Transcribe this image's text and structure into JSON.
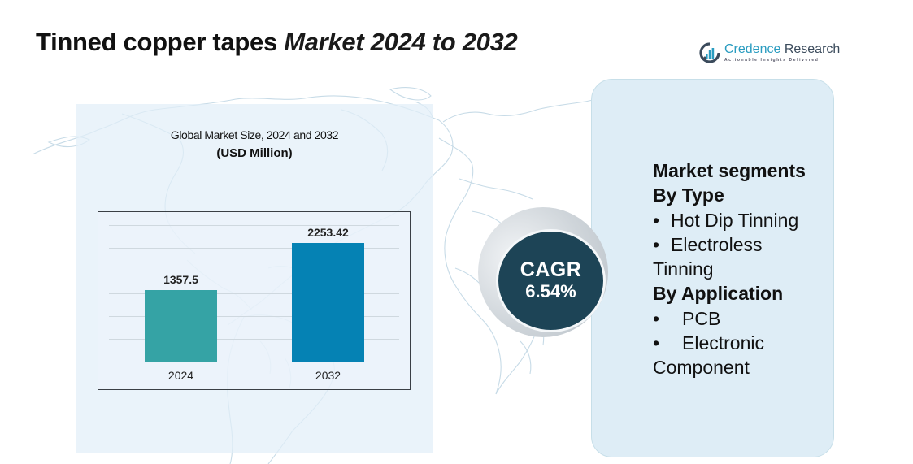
{
  "header": {
    "title_main": "Tinned copper tapes ",
    "title_italic": "Market 2024 to 2032"
  },
  "logo": {
    "icon": "bar-chart-circle-icon",
    "name_part1": "Credence ",
    "name_part2": "Research",
    "tagline": "Actionable Insights Delivered"
  },
  "chart_panel": {
    "title": "Global Market Size, 2024 and 2032",
    "unit": "(USD Million)"
  },
  "chart_data": {
    "type": "bar",
    "title": "Global Market Size, 2024 and 2032",
    "subtitle": "(USD Million)",
    "categories": [
      "2024",
      "2032"
    ],
    "values": [
      1357.5,
      2253.42
    ],
    "value_labels": [
      "1357.5",
      "2253.42"
    ],
    "colors": [
      "#35a3a5",
      "#0582b4"
    ],
    "xlabel": "",
    "ylabel": "USD Million",
    "ylim": [
      0,
      2600
    ],
    "grid": true,
    "legend": false
  },
  "cagr": {
    "label": "CAGR",
    "value": "6.54%"
  },
  "segments": {
    "heading": "Market segments",
    "groups": [
      {
        "title": "By Type",
        "items": [
          "Hot Dip Tinning",
          "Electroless",
          "Tinning"
        ]
      },
      {
        "title": "By Application",
        "items": [
          "PCB",
          "Electronic",
          "Component"
        ]
      }
    ]
  },
  "colors": {
    "bar_2024": "#35a3a5",
    "bar_2032": "#0582b4",
    "cagr_circle": "#1d4456",
    "right_panel": "#deedf6",
    "left_panel": "#e3eef7",
    "logo_accent": "#2a9cc0"
  }
}
